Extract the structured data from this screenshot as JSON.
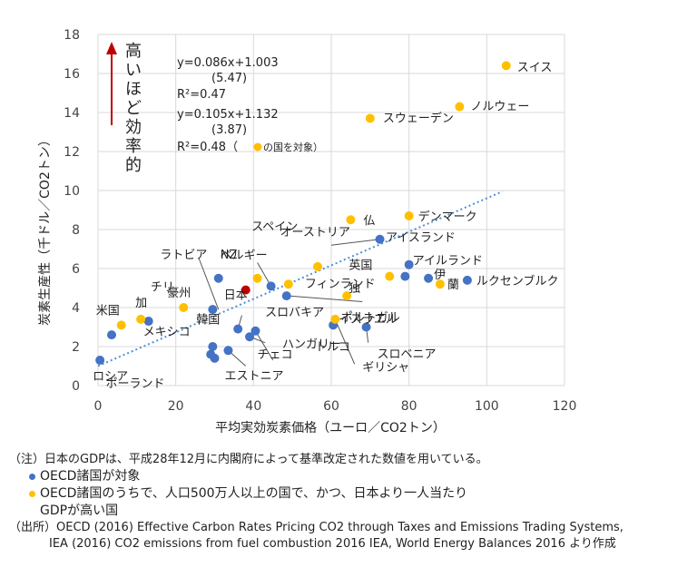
{
  "chart_data": {
    "type": "scatter",
    "xlabel": "平均実効炭素価格（ユーロ／CO2トン）",
    "ylabel": "炭素生産性（千ドル／CO2トン）",
    "xlim": [
      0,
      120
    ],
    "ylim": [
      0,
      18
    ],
    "xticks": [
      "0",
      "20",
      "40",
      "60",
      "80",
      "100",
      "120"
    ],
    "yticks": [
      "0",
      "2",
      "4",
      "6",
      "8",
      "10",
      "12",
      "14",
      "16",
      "18"
    ],
    "grid": true,
    "arrow_label": "高いほど効率的",
    "equations": [
      "y=0.086x+1.003",
      "(5.47)",
      "R²=0.47",
      "y=0.105x+1.132",
      "(3.87)",
      "R²=0.48（",
      "の国を対象）"
    ],
    "trendline": {
      "slope": 0.086,
      "intercept": 1.003,
      "x_range": [
        0,
        104
      ]
    },
    "colors": {
      "blue": "#4472c4",
      "yellow": "#ffc000",
      "red": "#c00000",
      "trend": "#4f8fd6",
      "arrow": "#c00000"
    },
    "series": [
      {
        "color": "blue",
        "points": [
          {
            "x": 0.5,
            "y": 1.3,
            "label": "ロシア"
          },
          {
            "x": 3.5,
            "y": 2.6,
            "label": ""
          },
          {
            "x": 13,
            "y": 3.3,
            "label": "メキシコ"
          },
          {
            "x": 29,
            "y": 1.6,
            "label": ""
          },
          {
            "x": 30,
            "y": 1.4,
            "label": "ポーランド"
          },
          {
            "x": 29.5,
            "y": 2.0,
            "label": ""
          },
          {
            "x": 33.5,
            "y": 1.8,
            "label": "エストニア"
          },
          {
            "x": 29.5,
            "y": 3.9,
            "label": "ラトビア"
          },
          {
            "x": 31,
            "y": 5.5,
            "label": "NZ"
          },
          {
            "x": 36,
            "y": 2.9,
            "label": "韓国"
          },
          {
            "x": 39,
            "y": 2.5,
            "label": "ハンガリー"
          },
          {
            "x": 40.5,
            "y": 2.8,
            "label": "チェコ"
          },
          {
            "x": 44.5,
            "y": 5.1,
            "label": "ベルギー"
          },
          {
            "x": 48.5,
            "y": 4.6,
            "label": "ポルトガル"
          },
          {
            "x": 60.5,
            "y": 3.1,
            "label": "トルコ"
          },
          {
            "x": 69,
            "y": 3.0,
            "label": "スロベニア"
          },
          {
            "x": 72.5,
            "y": 7.5,
            "label": "オーストリア"
          },
          {
            "x": 79,
            "y": 5.6,
            "label": "英国"
          },
          {
            "x": 80,
            "y": 6.2,
            "label": "アイルランド"
          },
          {
            "x": 85,
            "y": 5.5,
            "label": "伊"
          },
          {
            "x": 95,
            "y": 5.4,
            "label": "ルクセンブルク"
          }
        ]
      },
      {
        "color": "yellow",
        "points": [
          {
            "x": 105,
            "y": 16.4,
            "label": "スイス"
          },
          {
            "x": 93,
            "y": 14.3,
            "label": "ノルウェー"
          },
          {
            "x": 70,
            "y": 13.7,
            "label": "スウェーデン"
          },
          {
            "x": 65,
            "y": 8.5,
            "label": "仏"
          },
          {
            "x": 80,
            "y": 8.7,
            "label": "デンマーク"
          },
          {
            "x": 56.5,
            "y": 6.1,
            "label": ""
          },
          {
            "x": 41,
            "y": 5.5,
            "label": ""
          },
          {
            "x": 49,
            "y": 5.2,
            "label": "フィンランド"
          },
          {
            "x": 75,
            "y": 5.6,
            "label": ""
          },
          {
            "x": 88,
            "y": 5.2,
            "label": "蘭"
          },
          {
            "x": 64,
            "y": 4.6,
            "label": "独"
          },
          {
            "x": 61,
            "y": 3.4,
            "label": "イスラエル"
          },
          {
            "x": 22,
            "y": 4.0,
            "label": "豪州"
          },
          {
            "x": 11,
            "y": 3.4,
            "label": "加"
          },
          {
            "x": 6,
            "y": 3.1,
            "label": "米国"
          }
        ]
      },
      {
        "color": "red",
        "points": [
          {
            "x": 38,
            "y": 4.9,
            "label": "日本"
          }
        ]
      }
    ],
    "extra_labels": [
      "チリ",
      "スペイン",
      "アイスランド",
      "スロバキア",
      "ギリシャ"
    ]
  },
  "notes": {
    "line1": "（注）日本のGDPは、平成28年12月に内閣府によって基準改定された数値を用いている。",
    "legend_blue": "OECD諸国が対象",
    "legend_yellow_1": "OECD諸国のうちで、人口500万人以上の国で、かつ、日本より一人当たり",
    "legend_yellow_2": "GDPが高い国",
    "source_1": "（出所）OECD (2016) Effective Carbon Rates  Pricing CO2 through Taxes and Emissions Trading Systems,",
    "source_2": "IEA (2016) CO2 emissions from fuel combustion 2016    IEA, World Energy Balances 2016 より作成"
  }
}
